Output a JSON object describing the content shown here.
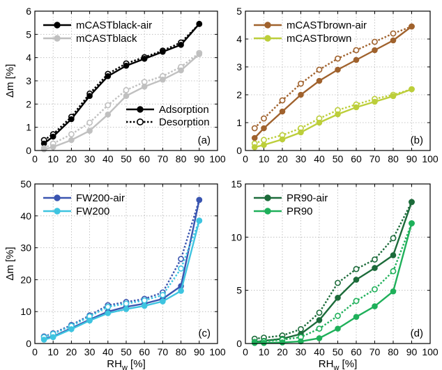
{
  "chart_data": [
    {
      "type": "line",
      "panel_label": "(a)",
      "xlabel": "",
      "ylabel": "Δm [%]",
      "xlim": [
        0,
        100
      ],
      "ylim": [
        0,
        6
      ],
      "xticks": [
        0,
        10,
        20,
        30,
        40,
        50,
        60,
        70,
        80,
        90,
        100
      ],
      "yticks": [
        0,
        1,
        2,
        3,
        4,
        5,
        6
      ],
      "grid": true,
      "legend_position": "top-left",
      "style_legend": {
        "adsorption": "Adsorption",
        "desorption": "Desorption",
        "position": "center-right"
      },
      "series": [
        {
          "name": "mCASTblack-air",
          "color": "#000000",
          "x": [
            5,
            10,
            20,
            30,
            40,
            50,
            60,
            70,
            80,
            90
          ],
          "adsorption": [
            0.3,
            0.6,
            1.35,
            2.35,
            3.2,
            3.65,
            3.95,
            4.25,
            4.55,
            5.45
          ],
          "desorption": [
            0.45,
            0.7,
            1.45,
            2.45,
            3.3,
            3.75,
            4.02,
            4.3,
            4.65,
            5.45
          ]
        },
        {
          "name": "mCASTblack",
          "color": "#c0c0c0",
          "x": [
            5,
            10,
            20,
            30,
            40,
            50,
            60,
            70,
            80,
            90
          ],
          "adsorption": [
            0.05,
            0.15,
            0.45,
            0.85,
            1.55,
            2.35,
            2.75,
            3.05,
            3.45,
            4.15
          ],
          "desorption": [
            0.1,
            0.3,
            0.7,
            1.2,
            1.95,
            2.6,
            2.95,
            3.2,
            3.6,
            4.2
          ]
        }
      ]
    },
    {
      "type": "line",
      "panel_label": "(b)",
      "xlabel": "",
      "ylabel": "",
      "xlim": [
        0,
        100
      ],
      "ylim": [
        0,
        5
      ],
      "xticks": [
        0,
        10,
        20,
        30,
        40,
        50,
        60,
        70,
        80,
        90,
        100
      ],
      "yticks": [
        0,
        1,
        2,
        3,
        4,
        5
      ],
      "grid": true,
      "legend_position": "top-left",
      "series": [
        {
          "name": "mCASTbrown-air",
          "color": "#a0622d",
          "x": [
            5,
            10,
            20,
            30,
            40,
            50,
            60,
            70,
            80,
            90
          ],
          "adsorption": [
            0.45,
            0.8,
            1.4,
            2.0,
            2.5,
            2.9,
            3.25,
            3.6,
            3.95,
            4.45
          ],
          "desorption": [
            0.8,
            1.15,
            1.8,
            2.4,
            2.9,
            3.3,
            3.6,
            3.9,
            4.2,
            4.45
          ]
        },
        {
          "name": "mCASTbrown",
          "color": "#bcce3a",
          "x": [
            5,
            10,
            20,
            30,
            40,
            50,
            60,
            70,
            80,
            90
          ],
          "adsorption": [
            0.12,
            0.2,
            0.4,
            0.65,
            1.0,
            1.3,
            1.55,
            1.75,
            1.95,
            2.2
          ],
          "desorption": [
            0.25,
            0.38,
            0.55,
            0.8,
            1.15,
            1.45,
            1.65,
            1.85,
            2.0,
            2.2
          ]
        }
      ]
    },
    {
      "type": "line",
      "panel_label": "(c)",
      "xlabel": "RHw [%]",
      "ylabel": "Δm [%]",
      "xlim": [
        0,
        100
      ],
      "ylim": [
        0,
        50
      ],
      "xticks": [
        0,
        10,
        20,
        30,
        40,
        50,
        60,
        70,
        80,
        90,
        100
      ],
      "yticks": [
        0,
        10,
        20,
        30,
        40,
        50
      ],
      "grid": true,
      "legend_position": "top-left",
      "series": [
        {
          "name": "FW200-air",
          "color": "#3a55b0",
          "x": [
            5,
            10,
            20,
            30,
            40,
            50,
            60,
            70,
            80,
            90
          ],
          "adsorption": [
            1.5,
            2.2,
            4.8,
            7.5,
            10.0,
            11.5,
            12.5,
            14.0,
            18.0,
            45.0
          ],
          "desorption": [
            2.2,
            3.2,
            5.8,
            8.8,
            12.0,
            13.0,
            14.0,
            16.0,
            26.5,
            45.0
          ]
        },
        {
          "name": "FW200",
          "color": "#3ec4e0",
          "x": [
            5,
            10,
            20,
            30,
            40,
            50,
            60,
            70,
            80,
            90
          ],
          "adsorption": [
            1.2,
            2.0,
            4.5,
            7.2,
            9.5,
            10.8,
            11.8,
            13.2,
            16.5,
            38.5
          ],
          "desorption": [
            2.0,
            3.0,
            5.5,
            8.5,
            11.5,
            12.5,
            13.5,
            15.2,
            23.5,
            38.5
          ]
        }
      ]
    },
    {
      "type": "line",
      "panel_label": "(d)",
      "xlabel": "RHw [%]",
      "ylabel": "",
      "xlim": [
        0,
        100
      ],
      "ylim": [
        0,
        15
      ],
      "xticks": [
        0,
        10,
        20,
        30,
        40,
        50,
        60,
        70,
        80,
        90,
        100
      ],
      "yticks": [
        0,
        5,
        10,
        15
      ],
      "grid": true,
      "legend_position": "top-left",
      "series": [
        {
          "name": "PR90-air",
          "color": "#1c6b3a",
          "x": [
            5,
            10,
            20,
            30,
            40,
            50,
            60,
            70,
            80,
            90
          ],
          "adsorption": [
            0.15,
            0.25,
            0.45,
            0.9,
            2.2,
            4.3,
            6.0,
            7.1,
            8.3,
            13.3
          ],
          "desorption": [
            0.45,
            0.55,
            0.75,
            1.35,
            2.9,
            5.7,
            7.0,
            7.9,
            9.9,
            13.3
          ]
        },
        {
          "name": "PR90",
          "color": "#1fb05a",
          "x": [
            5,
            10,
            20,
            30,
            40,
            50,
            60,
            70,
            80,
            90
          ],
          "adsorption": [
            0.05,
            0.05,
            0.1,
            0.2,
            0.5,
            1.4,
            2.5,
            3.5,
            4.9,
            11.3
          ],
          "desorption": [
            0.15,
            0.2,
            0.35,
            0.6,
            1.4,
            2.6,
            4.0,
            5.1,
            6.8,
            11.3
          ]
        }
      ]
    }
  ]
}
